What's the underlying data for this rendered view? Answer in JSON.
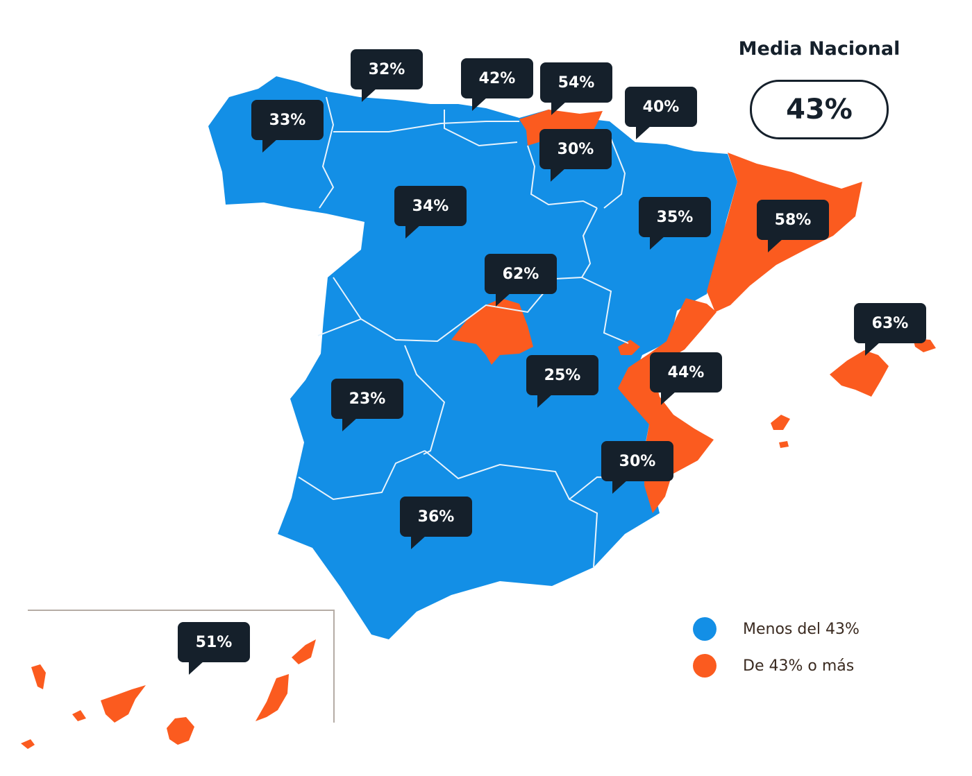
{
  "media_nacional": {
    "title": "Media Nacional",
    "value": "43%"
  },
  "legend": [
    {
      "label": "Menos del 43%",
      "color": "#138fe6"
    },
    {
      "label": "De 43% o más",
      "color": "#fb5b1f"
    }
  ],
  "regions": [
    {
      "name": "Asturias",
      "value": "32%",
      "category": "below"
    },
    {
      "name": "Galicia",
      "value": "33%",
      "category": "below"
    },
    {
      "name": "Cantabria",
      "value": "42%",
      "category": "below"
    },
    {
      "name": "País Vasco",
      "value": "54%",
      "category": "above"
    },
    {
      "name": "Navarra",
      "value": "40%",
      "category": "below"
    },
    {
      "name": "La Rioja",
      "value": "30%",
      "category": "below"
    },
    {
      "name": "Castilla y León",
      "value": "34%",
      "category": "below"
    },
    {
      "name": "Aragón",
      "value": "35%",
      "category": "below"
    },
    {
      "name": "Cataluña",
      "value": "58%",
      "category": "above"
    },
    {
      "name": "Madrid",
      "value": "62%",
      "category": "above"
    },
    {
      "name": "Baleares",
      "value": "63%",
      "category": "above"
    },
    {
      "name": "Castilla-La Mancha",
      "value": "25%",
      "category": "below"
    },
    {
      "name": "Comunidad Valenciana",
      "value": "44%",
      "category": "above"
    },
    {
      "name": "Extremadura",
      "value": "23%",
      "category": "below"
    },
    {
      "name": "Murcia",
      "value": "30%",
      "category": "below"
    },
    {
      "name": "Andalucía",
      "value": "36%",
      "category": "below"
    },
    {
      "name": "Canarias",
      "value": "51%",
      "category": "above"
    }
  ]
}
